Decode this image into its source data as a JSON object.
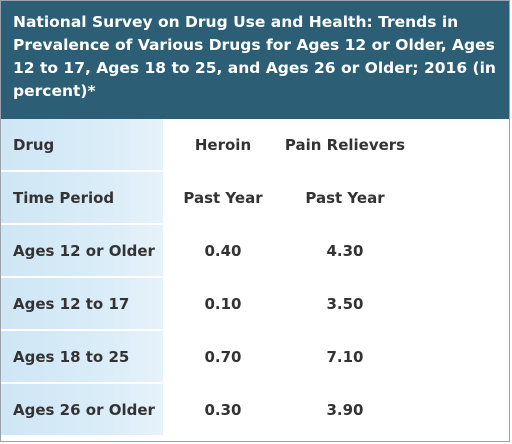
{
  "title": "National Survey on Drug Use and Health: Trends in Prevalence of Various Drugs for Ages 12 or Older, Ages 12 to 17, Ages 18 to 25, and Ages 26 or Older; 2016 (in percent)*",
  "title_lines": [
    "National Survey on Drug Use and Health: Trends in",
    "Prevalence of Various Drugs for Ages 12 or Older, Ages",
    "12 to 17, Ages 18 to 25, and Ages 26 or Older; 2016 (in",
    "percent)*"
  ],
  "colors": {
    "title_background": "#2c5f76",
    "row_label_background": "#d9ecf8"
  },
  "table": {
    "rows": [
      {
        "label": "Drug",
        "cells": [
          "Heroin",
          "Pain Relievers"
        ]
      },
      {
        "label": "Time Period",
        "cells": [
          "Past Year",
          "Past Year"
        ]
      },
      {
        "label": "Ages 12 or Older",
        "cells": [
          "0.40",
          "4.30"
        ]
      },
      {
        "label": "Ages 12 to 17",
        "cells": [
          "0.10",
          "3.50"
        ]
      },
      {
        "label": "Ages 18 to 25",
        "cells": [
          "0.70",
          "7.10"
        ]
      },
      {
        "label": "Ages 26 or Older",
        "cells": [
          "0.30",
          "3.90"
        ]
      }
    ]
  }
}
